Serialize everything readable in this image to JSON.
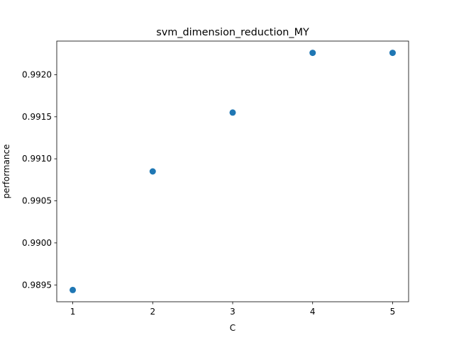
{
  "chart_data": {
    "type": "scatter",
    "title": "svm_dimension_reduction_MY",
    "xlabel": "C",
    "ylabel": "performance",
    "x": [
      1,
      2,
      3,
      4,
      5
    ],
    "y": [
      0.98944,
      0.99085,
      0.99155,
      0.99226,
      0.99226
    ],
    "xticks": [
      1,
      2,
      3,
      4,
      5
    ],
    "yticks": [
      0.9895,
      0.99,
      0.9905,
      0.991,
      0.9915,
      0.992
    ],
    "ytick_labels": [
      "0.9895",
      "0.9900",
      "0.9905",
      "0.9910",
      "0.9915",
      "0.9920"
    ],
    "xlim": [
      0.8,
      5.2
    ],
    "ylim": [
      0.9893,
      0.9924
    ],
    "grid": false,
    "marker_color": "#1f77b4"
  }
}
